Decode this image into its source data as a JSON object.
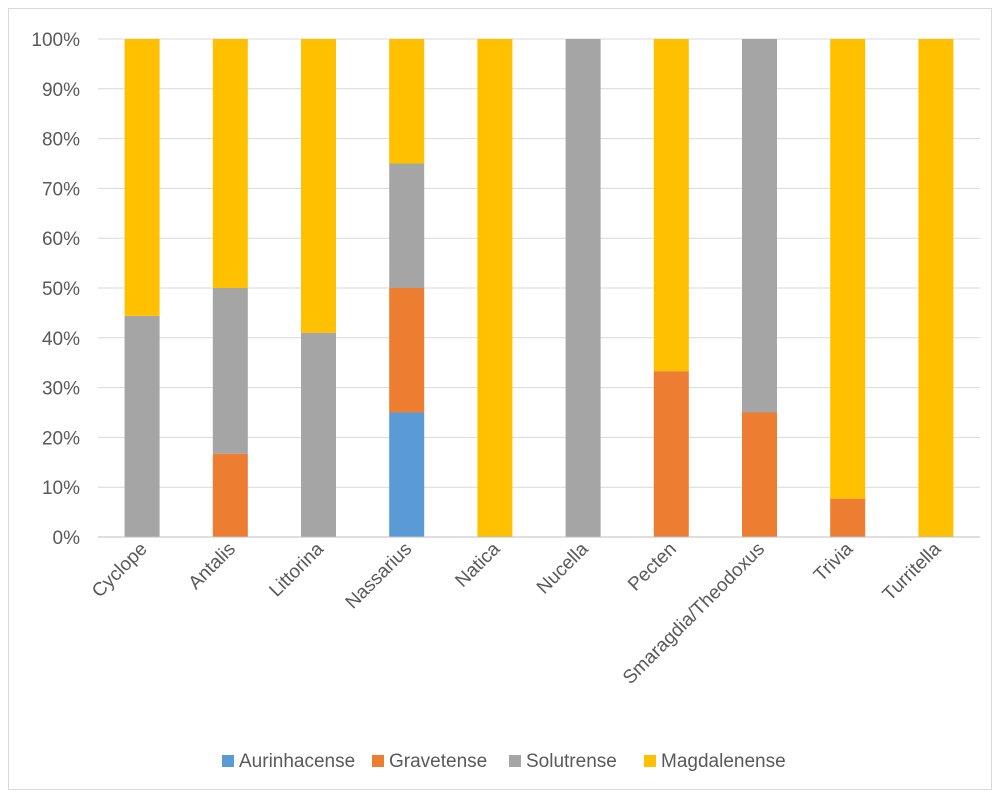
{
  "chart_data": {
    "type": "bar",
    "stacked": true,
    "normalized": true,
    "categories": [
      "Cyclope",
      "Antalis",
      "Littorina",
      "Nassarius",
      "Natica",
      "Nucella",
      "Pecten",
      "Smaragdia/Theodoxus",
      "Trivia",
      "Turritella"
    ],
    "series": [
      {
        "name": "Aurinhacense",
        "color": "#5b9bd5",
        "values": [
          0,
          0,
          0,
          25,
          0,
          0,
          0,
          0,
          0,
          0
        ]
      },
      {
        "name": "Gravetense",
        "color": "#ed7d31",
        "values": [
          0,
          16.7,
          0,
          25,
          0,
          0,
          33.3,
          25,
          7.7,
          0
        ]
      },
      {
        "name": "Solutrense",
        "color": "#a5a5a5",
        "values": [
          44.4,
          33.3,
          41,
          25,
          0,
          100,
          0,
          75,
          0,
          0
        ]
      },
      {
        "name": "Magdalenense",
        "color": "#ffc000",
        "values": [
          55.6,
          50,
          59,
          25,
          100,
          0,
          66.7,
          0,
          92.3,
          100
        ]
      }
    ],
    "y_ticks": [
      "0%",
      "10%",
      "20%",
      "30%",
      "40%",
      "50%",
      "60%",
      "70%",
      "80%",
      "90%",
      "100%"
    ],
    "ylim": [
      0,
      100
    ],
    "grid": true,
    "legend_position": "bottom",
    "gridline_color": "#d9d9d9",
    "axis_color": "#bfbfbf"
  }
}
